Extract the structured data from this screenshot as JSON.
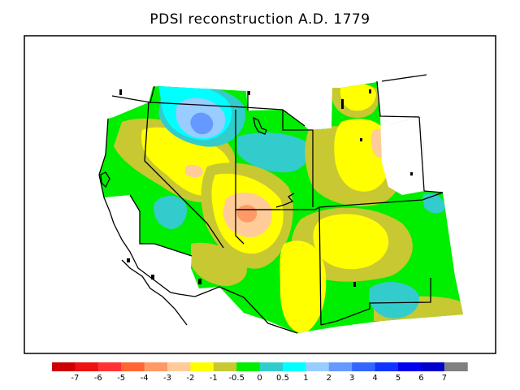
{
  "title": "PDSI reconstruction A.D. 1779",
  "legend": {
    "colors": [
      "#cc0000",
      "#ee1111",
      "#ff3333",
      "#ff6633",
      "#ff9966",
      "#ffcc99",
      "#ffff00",
      "#c8c832",
      "#00ee00",
      "#33cccc",
      "#00ffff",
      "#99ccff",
      "#6699ff",
      "#3366ff",
      "#1133ff",
      "#0000ee",
      "#0000cc",
      "#808080"
    ],
    "labels": [
      "-7",
      "-6",
      "-5",
      "-4",
      "-3",
      "-2",
      "-1",
      "-0.5",
      "0",
      "0.5",
      "1",
      "2",
      "3",
      "4",
      "5",
      "6",
      "7"
    ]
  },
  "palette": {
    "yellow": "#ffff00",
    "olive": "#c8c832",
    "green": "#00ee00",
    "teal": "#33cccc",
    "lightblue": "#99ccff",
    "blue": "#6699ff",
    "cyan": "#00ffff",
    "peach": "#ffcc99",
    "salmon": "#ff9966",
    "orange": "#ff6633"
  }
}
